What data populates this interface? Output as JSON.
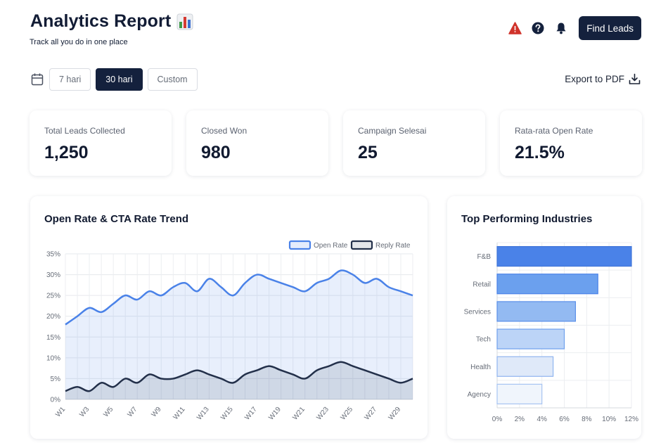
{
  "header": {
    "title": "Analytics Report",
    "subtitle": "Track all you do in one place",
    "find_leads_label": "Find Leads"
  },
  "icons": {
    "title": "bar-chart-emoji-icon",
    "alert": "alert-triangle-icon",
    "help": "help-circle-icon",
    "notifications": "bell-icon",
    "calendar": "calendar-icon",
    "export": "download-icon"
  },
  "colors": {
    "navy": "#14213d",
    "alert": "#d0332b",
    "open_rate": "#4a82e8",
    "reply_rate": "#23304a"
  },
  "date_range": {
    "options": [
      "7 hari",
      "30 hari",
      "Custom"
    ],
    "selected": "30 hari"
  },
  "export_label": "Export to PDF",
  "stats": [
    {
      "label": "Total Leads Collected",
      "value": "1,250"
    },
    {
      "label": "Closed Won",
      "value": "980"
    },
    {
      "label": "Campaign Selesai",
      "value": "25"
    },
    {
      "label": "Rata-rata Open Rate",
      "value": "21.5%"
    }
  ],
  "trend_chart": {
    "title": "Open Rate & CTA Rate Trend",
    "chart_data": {
      "type": "area",
      "title": "Open Rate & CTA Rate Trend",
      "x": [
        "W1",
        "W2",
        "W3",
        "W4",
        "W5",
        "W6",
        "W7",
        "W8",
        "W9",
        "W10",
        "W11",
        "W12",
        "W13",
        "W14",
        "W15",
        "W16",
        "W17",
        "W18",
        "W19",
        "W20",
        "W21",
        "W22",
        "W23",
        "W24",
        "W25",
        "W26",
        "W27",
        "W28",
        "W29",
        "W30"
      ],
      "x_tick_labels": [
        "W1",
        "W3",
        "W5",
        "W7",
        "W9",
        "W11",
        "W13",
        "W15",
        "W17",
        "W19",
        "W21",
        "W23",
        "W25",
        "W27",
        "W29"
      ],
      "y_ticks": [
        "0%",
        "5%",
        "10%",
        "15%",
        "20%",
        "25%",
        "30%",
        "35%"
      ],
      "ylim": [
        0,
        35
      ],
      "series": [
        {
          "name": "Open Rate",
          "values": [
            18,
            20,
            22,
            21,
            23,
            25,
            24,
            26,
            25,
            27,
            28,
            26,
            29,
            27,
            25,
            28,
            30,
            29,
            28,
            27,
            26,
            28,
            29,
            31,
            30,
            28,
            29,
            27,
            26,
            25
          ]
        },
        {
          "name": "Reply Rate",
          "values": [
            2,
            3,
            2,
            4,
            3,
            5,
            4,
            6,
            5,
            5,
            6,
            7,
            6,
            5,
            4,
            6,
            7,
            8,
            7,
            6,
            5,
            7,
            8,
            9,
            8,
            7,
            6,
            5,
            4,
            5
          ]
        }
      ],
      "legend": [
        "Open Rate",
        "Reply Rate"
      ],
      "grid": true
    }
  },
  "industries_chart": {
    "title": "Top Performing Industries",
    "chart_data": {
      "type": "bar",
      "orientation": "horizontal",
      "title": "Top Performing Industries",
      "categories": [
        "F&B",
        "Retail",
        "Services",
        "Tech",
        "Health",
        "Agency"
      ],
      "values": [
        12,
        9,
        7,
        6,
        5,
        4
      ],
      "x_tick_labels": [
        "0%",
        "2%",
        "4%",
        "6%",
        "8%",
        "10%",
        "12%"
      ],
      "xlim": [
        0,
        12
      ],
      "bar_colors": [
        "#4a82e8",
        "#6ba0ee",
        "#93baf2",
        "#bcd4f7",
        "#dfe9f9",
        "#f0f5fc"
      ],
      "grid": true
    }
  }
}
